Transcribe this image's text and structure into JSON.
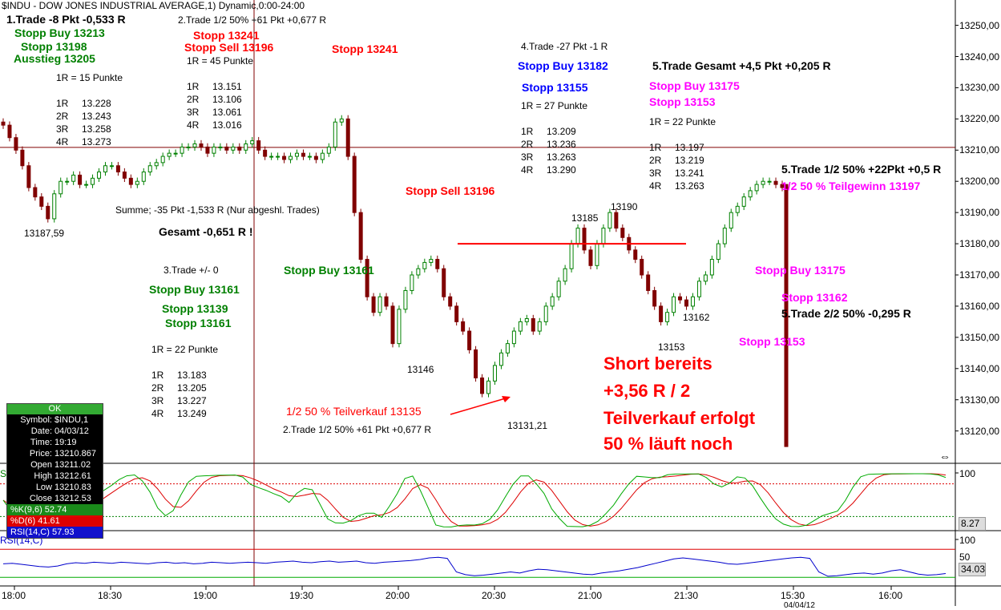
{
  "header": {
    "title": "$INDU - DOW JONES INDUSTRIAL AVERAGE,1) Dynamic,0:00-24:00"
  },
  "colors": {
    "up_candle": "#008000",
    "down_candle": "#800000",
    "crosshair": "#800000",
    "resistance": "#ff0000",
    "stoch_k": "#00aa00",
    "stoch_d": "#dd0000",
    "rsi": "#0000cc",
    "rsi_bands": "#00aa00"
  },
  "chart_data": [
    {
      "type": "candlestick",
      "panel": "price",
      "y_ticks": [
        "13250,00",
        "13240,00",
        "13230,00",
        "13220,00",
        "13210,00",
        "13200,00",
        "13190,00",
        "13180,00",
        "13170,00",
        "13160,00",
        "13150,00",
        "13140,00",
        "13130,00",
        "13120,00"
      ],
      "ylim": [
        13114,
        13254
      ],
      "x_ticks": [
        "18:00",
        "18:30",
        "19:00",
        "19:30",
        "20:00",
        "20:30",
        "21:00",
        "21:30",
        "15:30",
        "16:00"
      ],
      "x_tick_partial": "04/04/12",
      "close_series": [
        13218,
        13214,
        13210,
        13205,
        13198,
        13195,
        13192,
        13188,
        13196,
        13200,
        13200,
        13202,
        13199,
        13199,
        13201,
        13203,
        13205,
        13205,
        13203,
        13201,
        13199,
        13200,
        13203,
        13205,
        13206,
        13208,
        13209,
        13209,
        13211,
        13211,
        13212,
        13211,
        13209,
        13211,
        13211,
        13210,
        13211,
        13210,
        13212,
        13213,
        13210,
        13208,
        13208,
        13208,
        13207,
        13208,
        13209,
        13208,
        13208,
        13207,
        13209,
        13211,
        13219,
        13220,
        13208,
        13190,
        13175,
        13163,
        13158,
        13163,
        13160,
        13148,
        13159,
        13165,
        13170,
        13172,
        13174,
        13175,
        13172,
        13163,
        13160,
        13155,
        13152,
        13146,
        13137,
        13132,
        13136,
        13141,
        13145,
        13148,
        13152,
        13155,
        13156,
        13152,
        13155,
        13160,
        13163,
        13168,
        13172,
        13180,
        13185,
        13178,
        13173,
        13180,
        13185,
        13190,
        13185,
        13182,
        13178,
        13175,
        13170,
        13165,
        13160,
        13155,
        13158,
        13163,
        13162,
        13160,
        13163,
        13168,
        13170,
        13175,
        13180,
        13185,
        13190,
        13192,
        13195,
        13197,
        13199,
        13200,
        13200,
        13199,
        13198
      ],
      "resistance_level": 13180,
      "crosshair_price": 13210.867
    },
    {
      "type": "line",
      "panel": "stochastic",
      "y_ticks": [
        "100",
        "8.27"
      ],
      "series": [
        {
          "name": "%K(9,6)",
          "value": 52.74
        },
        {
          "name": "%D(6)",
          "value": 41.61
        }
      ]
    },
    {
      "type": "line",
      "panel": "rsi",
      "y_ticks": [
        "100",
        "50",
        "34.03"
      ],
      "series": [
        {
          "name": "RSI(14,C)",
          "value": 57.93
        }
      ],
      "rsi_series": [
        55,
        56,
        54,
        52,
        50,
        49,
        51,
        55,
        57,
        56,
        58,
        57,
        56,
        58,
        57,
        56,
        55,
        57,
        58,
        56,
        57,
        55,
        56,
        58,
        57,
        56,
        57,
        58,
        57,
        56,
        58,
        59,
        60,
        58,
        57,
        59,
        60,
        58,
        59,
        60,
        57,
        56,
        58,
        59,
        60,
        61,
        63,
        66,
        67,
        65,
        40,
        35,
        33,
        34,
        36,
        38,
        40,
        38,
        42,
        45,
        44,
        42,
        40,
        38,
        36,
        35,
        38,
        40,
        42,
        45,
        48,
        52,
        56,
        60,
        64,
        66,
        64,
        62,
        60,
        58,
        55,
        54,
        56,
        58,
        60,
        62,
        64,
        66,
        67,
        65,
        40,
        32,
        33,
        35,
        37,
        38,
        36,
        38,
        42,
        44,
        40,
        36,
        34,
        35,
        37
      ]
    }
  ],
  "annotations": {
    "trade1_title": "1.Trade -8 Pkt -0,533 R",
    "trade1_stop1": "Stopp Buy 13213",
    "trade1_stop2": "Stopp 13198",
    "trade1_exit": "Ausstieg 13205",
    "trade1_r": "1R =    15 Punkte",
    "trade1_levels": [
      [
        "1R",
        "13.228"
      ],
      [
        "2R",
        "13.243"
      ],
      [
        "3R",
        "13.258"
      ],
      [
        "4R",
        "13.273"
      ]
    ],
    "low1": "13187,59",
    "summe": "Summe; -35 Pkt -1,533 R (Nur abgeshl. Trades)",
    "gesamt": "Gesamt -0,651 R !",
    "trade2_title": "2.Trade 1/2 50% +61 Pkt +0,677 R",
    "trade2_stop1": "Stopp 13241",
    "trade2_stop2": "Stopp Sell 13196",
    "trade2_r": "1R =    45 Punkte",
    "trade2_levels": [
      [
        "1R",
        "13.151"
      ],
      [
        "2R",
        "13.106"
      ],
      [
        "3R",
        "13.061"
      ],
      [
        "4R",
        "13.016"
      ]
    ],
    "stopp_13241": "Stopp 13241",
    "stopp_sell_13196": "Stopp Sell 13196",
    "trade3_title": "3.Trade +/- 0",
    "trade3_stop1": "Stopp Buy 13161",
    "trade3_stop2": "Stopp 13139",
    "trade3_stop3": "Stopp 13161",
    "trade3_r": "1R =    22 Punkte",
    "trade3_levels": [
      [
        "1R",
        "13.183"
      ],
      [
        "2R",
        "13.205"
      ],
      [
        "3R",
        "13.227"
      ],
      [
        "4R",
        "13.249"
      ]
    ],
    "stopp_buy_13161": "Stopp Buy 13161",
    "low_13146": "13146",
    "teilverkauf": "1/2 50 % Teilverkauf 13135",
    "trade2_bottom": "2.Trade 1/2 50% +61 Pkt +0,677 R",
    "low_13131": "13131,21",
    "trade4_title": "4.Trade -27 Pkt -1 R",
    "trade4_stop1": "Stopp Buy 13182",
    "trade4_stop2": "Stopp 13155",
    "trade4_r": "1R =    27 Punkte",
    "trade4_levels": [
      [
        "1R",
        "13.209"
      ],
      [
        "2R",
        "13.236"
      ],
      [
        "3R",
        "13.263"
      ],
      [
        "4R",
        "13.290"
      ]
    ],
    "high_13185": "13185",
    "high_13190": "13190",
    "trade5_title": "5.Trade Gesamt +4,5 Pkt +0,205 R",
    "trade5_stop1": "Stopp Buy 13175",
    "trade5_stop2": "Stopp 13153",
    "trade5_r": "1R =    22 Punkte",
    "trade5_levels": [
      [
        "1R",
        "13.197"
      ],
      [
        "2R",
        "13.219"
      ],
      [
        "3R",
        "13.241"
      ],
      [
        "4R",
        "13.263"
      ]
    ],
    "trade5_half": "5.Trade 1/2 50% +22Pkt +0,5 R",
    "teilgewinn": "1/2 50 % Teilgewinn 13197",
    "stopp_buy_13175_b": "Stopp Buy 13175",
    "stopp_13162": "Stopp 13162",
    "trade5_second": "5.Trade 2/2 50% -0,295 R",
    "stopp_13153_b": "Stopp 13153",
    "low_13162": "13162",
    "low_13153": "13153",
    "short1": "Short bereits",
    "short2": "+3,56 R / 2",
    "short3": "Teilverkauf erfolgt",
    "short4": "50 % läuft noch"
  },
  "info_box": {
    "status": "OK",
    "rows": [
      {
        "k": "Symbol:",
        "v": "$INDU,1"
      },
      {
        "k": "Date:",
        "v": "04/03/12"
      },
      {
        "k": "Time:",
        "v": "19:19"
      },
      {
        "k": "Price:",
        "v": "13210.867"
      },
      {
        "k": "Open",
        "v": "13211.02"
      },
      {
        "k": "High",
        "v": "13212.61"
      },
      {
        "k": "Low",
        "v": "13210.83"
      },
      {
        "k": "Close",
        "v": "13212.53"
      }
    ],
    "k_line": "%K(9,6) 52.74",
    "d_line": "%D(6) 41.61",
    "rsi_line": "RSI(14,C) 57.93"
  },
  "panel_labels": {
    "stoch_short": "St",
    "rsi_short": "RSI(14,C)"
  }
}
